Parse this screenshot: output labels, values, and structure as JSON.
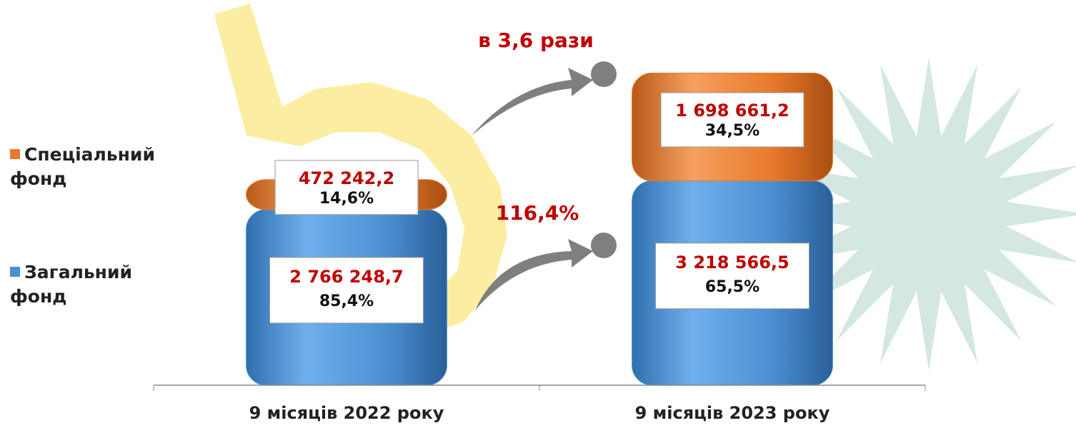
{
  "chart_data": {
    "type": "bar",
    "stacked": true,
    "categories": [
      "9 місяців 2022 року",
      "9 місяців 2023 року"
    ],
    "series": [
      {
        "name": "Загальний фонд",
        "color": "#4a8fd2",
        "values": [
          2766248.7,
          3218566.5
        ],
        "value_labels": [
          "2 766 248,7",
          "3 218 566,5"
        ],
        "share_labels": [
          "85,4%",
          "65,5%"
        ]
      },
      {
        "name": "Спеціальний фонд",
        "color": "#e8792a",
        "values": [
          472242.2,
          1698661.2
        ],
        "value_labels": [
          "472 242,2",
          "1 698 661,2"
        ],
        "share_labels": [
          "14,6%",
          "34,5%"
        ]
      }
    ],
    "ylim": [
      0,
      5000000
    ],
    "annotations": [
      "в 3,6 рази",
      "116,4%"
    ]
  }
}
